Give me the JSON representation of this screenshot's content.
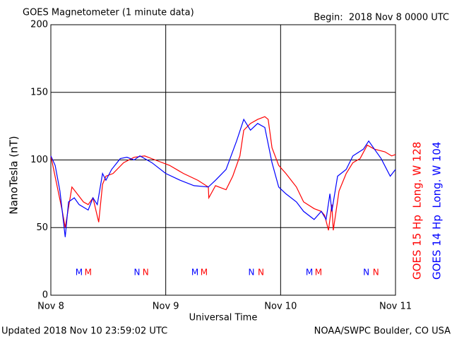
{
  "chart_data": {
    "type": "line",
    "title": "GOES Magnetometer (1 minute data)",
    "subtitle": "Begin:  2018 Nov 8 0000 UTC",
    "xlabel": "Universal Time",
    "ylabel": "NanoTesla (nT)",
    "footer_left": "Updated 2018 Nov 10 23:59:02 UTC",
    "footer_right": "NOAA/SWPC Boulder, CO USA",
    "xlim": [
      0,
      72
    ],
    "xticks": [
      {
        "value": 0,
        "label": "Nov 8"
      },
      {
        "value": 24,
        "label": "Nov 9"
      },
      {
        "value": 48,
        "label": "Nov 10"
      },
      {
        "value": 72,
        "label": "Nov 11"
      }
    ],
    "ylim": [
      0,
      200
    ],
    "yticks": [
      0,
      50,
      100,
      150,
      200
    ],
    "grid": true,
    "series": [
      {
        "name": "GOES 15 Hp  Long. W 128",
        "color": "#ff0000",
        "x": [
          0,
          2.4,
          3,
          4.4,
          5.5,
          6.8,
          7.8,
          8.8,
          10,
          10.8,
          11.5,
          13,
          15.2,
          17.4,
          19.6,
          21.8,
          24.8,
          27.7,
          30.7,
          32.9,
          33,
          34.4,
          36.6,
          38,
          39.5,
          40.3,
          41.7,
          43.2,
          44.7,
          45.4,
          46.2,
          47.6,
          49.1,
          51.3,
          52.8,
          55,
          56.5,
          57.2,
          58,
          58.7,
          59,
          60.2,
          61.7,
          63.1,
          64.6,
          66.1,
          67.6,
          69.8,
          71.2,
          72
        ],
        "values": [
          103,
          62,
          50,
          80,
          75,
          69,
          67,
          72,
          54,
          82,
          88,
          90,
          98,
          102,
          103,
          100,
          96,
          90,
          85,
          80,
          72,
          81,
          78,
          88,
          103,
          122,
          127,
          130,
          132,
          130,
          109,
          96,
          90,
          80,
          69,
          64,
          62,
          59,
          48,
          67,
          48,
          77,
          90,
          98,
          101,
          111,
          108,
          106,
          103,
          104
        ]
      },
      {
        "name": "GOES 14 Hp  Long. W 104",
        "color": "#0000ff",
        "x": [
          0,
          0.9,
          1.9,
          3,
          3.7,
          4.9,
          5.9,
          7.8,
          8.8,
          9.7,
          10.8,
          11.5,
          12.7,
          14.5,
          15.9,
          17.4,
          18.6,
          21.1,
          24,
          27,
          29.9,
          32.9,
          34.4,
          36.6,
          38.8,
          40.3,
          41.7,
          43.2,
          44.7,
          46.2,
          47.6,
          49.1,
          51.3,
          52.8,
          55,
          56.5,
          57.5,
          58.3,
          58.7,
          59.9,
          61.7,
          63.1,
          65.3,
          66.4,
          67.6,
          69,
          70.9,
          72
        ],
        "values": [
          103,
          96,
          77,
          43,
          69,
          72,
          67,
          63,
          72,
          67,
          90,
          85,
          93,
          101,
          102,
          100,
          103,
          98,
          90,
          85,
          81,
          80,
          85,
          93,
          114,
          130,
          122,
          127,
          124,
          98,
          80,
          75,
          69,
          62,
          56,
          62,
          56,
          75,
          62,
          88,
          93,
          103,
          108,
          114,
          108,
          101,
          88,
          93
        ]
      }
    ],
    "annotations": [
      {
        "text": "M",
        "x": 5.9,
        "color": "#0000ff"
      },
      {
        "text": "M",
        "x": 7.8,
        "color": "#ff0000"
      },
      {
        "text": "N",
        "x": 18.0,
        "color": "#0000ff"
      },
      {
        "text": "N",
        "x": 19.8,
        "color": "#ff0000"
      },
      {
        "text": "M",
        "x": 30.1,
        "color": "#0000ff"
      },
      {
        "text": "M",
        "x": 32.0,
        "color": "#ff0000"
      },
      {
        "text": "N",
        "x": 41.9,
        "color": "#0000ff"
      },
      {
        "text": "N",
        "x": 43.9,
        "color": "#ff0000"
      },
      {
        "text": "M",
        "x": 54.0,
        "color": "#0000ff"
      },
      {
        "text": "M",
        "x": 55.9,
        "color": "#ff0000"
      },
      {
        "text": "N",
        "x": 65.9,
        "color": "#0000ff"
      },
      {
        "text": "N",
        "x": 67.9,
        "color": "#ff0000"
      }
    ]
  }
}
